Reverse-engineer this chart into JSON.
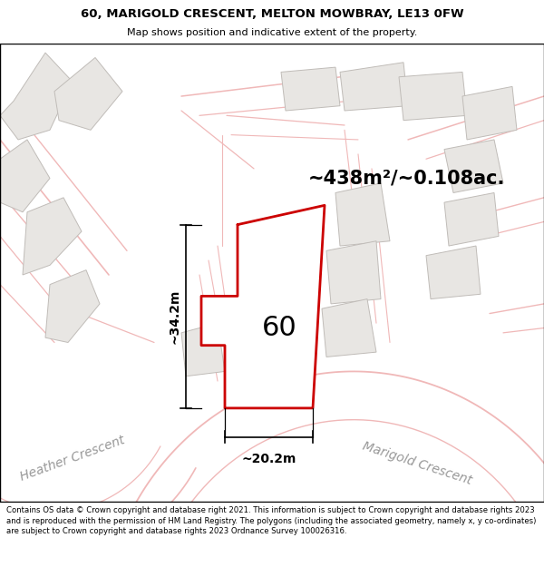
{
  "title_line1": "60, MARIGOLD CRESCENT, MELTON MOWBRAY, LE13 0FW",
  "title_line2": "Map shows position and indicative extent of the property.",
  "footer_text": "Contains OS data © Crown copyright and database right 2021. This information is subject to Crown copyright and database rights 2023 and is reproduced with the permission of HM Land Registry. The polygons (including the associated geometry, namely x, y co-ordinates) are subject to Crown copyright and database rights 2023 Ordnance Survey 100026316.",
  "area_label": "~438m²/~0.108ac.",
  "plot_label": "60",
  "dim_horizontal": "~20.2m",
  "dim_vertical": "~34.2m",
  "street_heather": "Heather Crescent",
  "street_marigold": "Marigold Crescent",
  "map_bg": "#f5f3f0",
  "road_color": "#f0b8b8",
  "plot_fill": "#ffffff",
  "plot_edge": "#cc0000",
  "building_fill": "#e8e6e3",
  "building_edge": "#c0bcb8",
  "white": "#ffffff",
  "dim_color": "#000000",
  "text_gray": "#999999"
}
